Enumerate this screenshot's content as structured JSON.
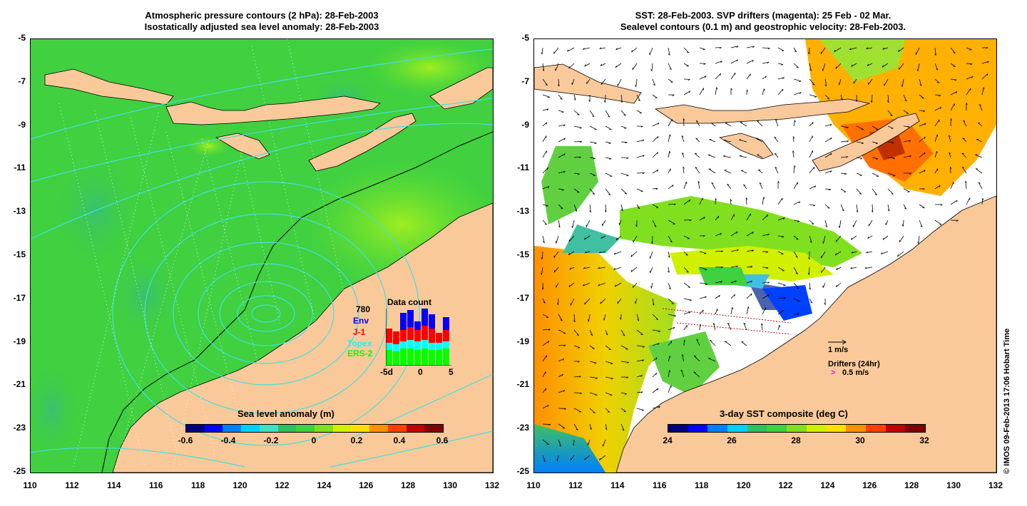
{
  "left_panel": {
    "title_line1": "Atmospheric pressure contours (2 hPa): 28-Feb-2003",
    "title_line2": "Isostatically adjusted sea level anomaly: 28-Feb-2003",
    "colorbar": {
      "label": "Sea level anomaly (m)",
      "ticks": [
        "-0.6",
        "-0.4",
        "-0.2",
        "0",
        "0.2",
        "0.4",
        "0.6"
      ],
      "colors": [
        "#00007f",
        "#0000ff",
        "#0080ff",
        "#00d0ff",
        "#40e0c0",
        "#30c060",
        "#40d040",
        "#80e020",
        "#d0f000",
        "#ffe000",
        "#ff9000",
        "#ff4000",
        "#c00000",
        "#800000"
      ]
    },
    "data_count": {
      "title": "Data count",
      "total": "780",
      "missions": [
        {
          "name": "Env",
          "color": "#0000ff"
        },
        {
          "name": "J-1",
          "color": "#ff0000"
        },
        {
          "name": "Topex",
          "color": "#00ffff"
        },
        {
          "name": "ERS-2",
          "color": "#00ff00"
        }
      ],
      "x_ticks": [
        "-5d",
        "0",
        "5"
      ]
    }
  },
  "right_panel": {
    "title_line1": "SST: 28-Feb-2003. SVP drifters (magenta): 25 Feb - 02 Mar.",
    "title_line2": "Sealevel contours (0.1 m) and geostrophic velocity: 28-Feb-2003.",
    "colorbar": {
      "label": "3-day SST composite (deg C)",
      "ticks": [
        "24",
        "26",
        "28",
        "30",
        "32"
      ],
      "colors": [
        "#00007f",
        "#0000ff",
        "#0080ff",
        "#00d0ff",
        "#30c060",
        "#40d040",
        "#80e020",
        "#d0f000",
        "#ffe000",
        "#ff9000",
        "#ff4000",
        "#c00000",
        "#800000"
      ]
    },
    "velocity_legend": "1 m/s",
    "drifters_legend": "Drifters (24hr)",
    "drifters_speed": "0.5 m/s",
    "drifter_symbol": ">"
  },
  "axes": {
    "y_ticks": [
      "-5",
      "-7",
      "-9",
      "-11",
      "-13",
      "-15",
      "-17",
      "-19",
      "-21",
      "-23",
      "-25"
    ],
    "x_ticks": [
      "110",
      "112",
      "114",
      "116",
      "118",
      "120",
      "122",
      "124",
      "126",
      "128",
      "130",
      "132"
    ]
  },
  "credit": "© IMOS 09-Feb-2013 17:06 Hobart Time",
  "colors": {
    "land": "#f9c99a",
    "ocean_green": "#40d040",
    "contour_cyan": "#40e0e0"
  }
}
